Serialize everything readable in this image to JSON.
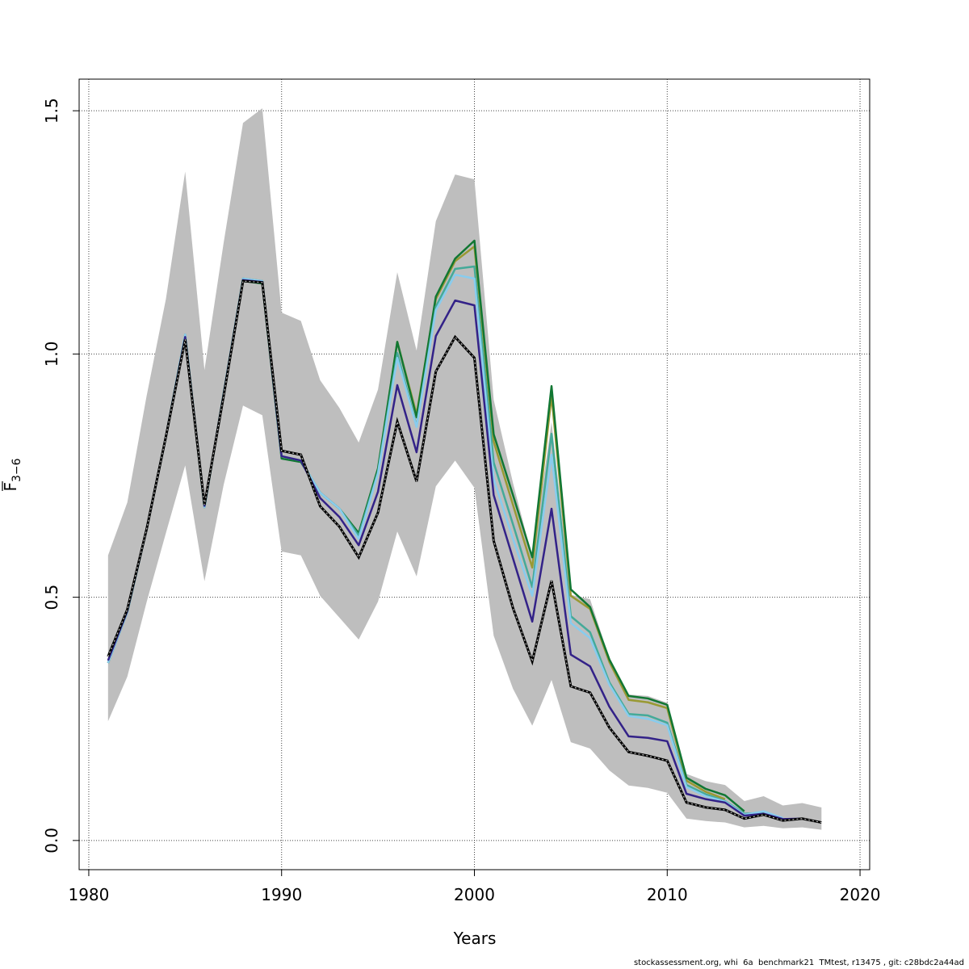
{
  "chart_data": {
    "type": "line",
    "title": "",
    "xlabel": "Years",
    "ylabel_main": "F",
    "ylabel_sub": "3−6",
    "xlim": [
      1979.5,
      2020.5
    ],
    "ylim": [
      -0.06,
      1.565
    ],
    "xticks": [
      1980,
      1990,
      2000,
      2010,
      2020
    ],
    "xtick_labels": [
      "1980",
      "1990",
      "2000",
      "2010",
      "2020"
    ],
    "yticks": [
      0.0,
      0.5,
      1.0,
      1.5
    ],
    "ytick_labels": [
      "0.0",
      "0.5",
      "1.0",
      "1.5"
    ],
    "grid": true,
    "start_year": 1981,
    "confidence_band": {
      "color": "#bebebe",
      "upper": [
        0.586,
        0.695,
        0.914,
        1.113,
        1.375,
        0.967,
        1.23,
        1.475,
        1.505,
        1.085,
        1.068,
        0.946,
        0.889,
        0.818,
        0.927,
        1.168,
        1.007,
        1.273,
        1.369,
        1.359,
        0.906,
        0.735,
        0.582,
        0.86,
        0.505,
        0.496,
        0.375,
        0.3,
        0.297,
        0.283,
        0.137,
        0.122,
        0.114,
        0.081,
        0.091,
        0.072,
        0.077,
        0.068
      ],
      "lower": [
        0.245,
        0.337,
        0.49,
        0.632,
        0.771,
        0.533,
        0.732,
        0.894,
        0.874,
        0.594,
        0.586,
        0.503,
        0.458,
        0.413,
        0.491,
        0.635,
        0.543,
        0.728,
        0.781,
        0.725,
        0.421,
        0.312,
        0.236,
        0.33,
        0.202,
        0.189,
        0.144,
        0.113,
        0.108,
        0.098,
        0.045,
        0.04,
        0.037,
        0.027,
        0.03,
        0.025,
        0.027,
        0.022
      ]
    },
    "series": [
      {
        "id": "peel-5",
        "color": "#999933",
        "dashed": false,
        "values": [
          0.365,
          0.47,
          0.64,
          0.83,
          1.04,
          0.685,
          0.92,
          1.155,
          1.15,
          0.79,
          0.781,
          0.715,
          0.682,
          0.627,
          0.76,
          1.025,
          0.876,
          1.113,
          1.191,
          1.221,
          0.82,
          0.69,
          0.561,
          0.914,
          0.503,
          0.476,
          0.367,
          0.289,
          0.284,
          0.272,
          0.123,
          0.1,
          0.085
        ]
      },
      {
        "id": "peel-4",
        "color": "#117733",
        "dashed": false,
        "values": [
          0.365,
          0.47,
          0.64,
          0.83,
          1.035,
          0.685,
          0.92,
          1.15,
          1.145,
          0.785,
          0.778,
          0.715,
          0.682,
          0.632,
          0.765,
          1.025,
          0.87,
          1.118,
          1.196,
          1.233,
          0.835,
          0.71,
          0.582,
          0.934,
          0.516,
          0.48,
          0.372,
          0.297,
          0.292,
          0.279,
          0.129,
          0.106,
          0.093,
          0.06
        ]
      },
      {
        "id": "peel-3",
        "color": "#44AA99",
        "dashed": false,
        "values": [
          0.365,
          0.47,
          0.64,
          0.83,
          1.04,
          0.685,
          0.92,
          1.155,
          1.15,
          0.79,
          0.781,
          0.715,
          0.682,
          0.627,
          0.758,
          1.002,
          0.851,
          1.097,
          1.175,
          1.18,
          0.777,
          0.65,
          0.521,
          0.836,
          0.461,
          0.428,
          0.325,
          0.26,
          0.257,
          0.242,
          0.114,
          0.095,
          0.081,
          0.055,
          0.057
        ]
      },
      {
        "id": "peel-2",
        "color": "#88CCEE",
        "dashed": false,
        "values": [
          0.365,
          0.47,
          0.64,
          0.83,
          1.04,
          0.685,
          0.92,
          1.155,
          1.15,
          0.79,
          0.781,
          0.715,
          0.682,
          0.62,
          0.755,
          0.992,
          0.85,
          1.09,
          1.163,
          1.155,
          0.743,
          0.62,
          0.503,
          0.793,
          0.447,
          0.416,
          0.32,
          0.256,
          0.25,
          0.237,
          0.11,
          0.091,
          0.08,
          0.053,
          0.06,
          0.046
        ]
      },
      {
        "id": "peel-1",
        "color": "#332288",
        "dashed": false,
        "values": [
          0.37,
          0.472,
          0.64,
          0.83,
          1.035,
          0.688,
          0.918,
          1.152,
          1.148,
          0.79,
          0.781,
          0.704,
          0.665,
          0.607,
          0.717,
          0.936,
          0.798,
          1.037,
          1.11,
          1.1,
          0.71,
          0.58,
          0.45,
          0.682,
          0.382,
          0.358,
          0.275,
          0.214,
          0.211,
          0.204,
          0.096,
          0.085,
          0.078,
          0.051,
          0.055,
          0.044,
          0.045
        ]
      },
      {
        "id": "base",
        "color": "#000000",
        "dashed": true,
        "values": [
          0.378,
          0.475,
          0.64,
          0.83,
          1.03,
          0.69,
          0.915,
          1.15,
          1.147,
          0.801,
          0.793,
          0.687,
          0.645,
          0.582,
          0.674,
          0.861,
          0.738,
          0.964,
          1.035,
          0.992,
          0.616,
          0.478,
          0.368,
          0.534,
          0.317,
          0.304,
          0.232,
          0.182,
          0.174,
          0.164,
          0.078,
          0.068,
          0.063,
          0.045,
          0.053,
          0.041,
          0.045,
          0.037
        ]
      }
    ]
  },
  "footer": "stockassessment.org, whi  6a  benchmark21  TMtest, r13475 , git: c28bdc2a44ad"
}
